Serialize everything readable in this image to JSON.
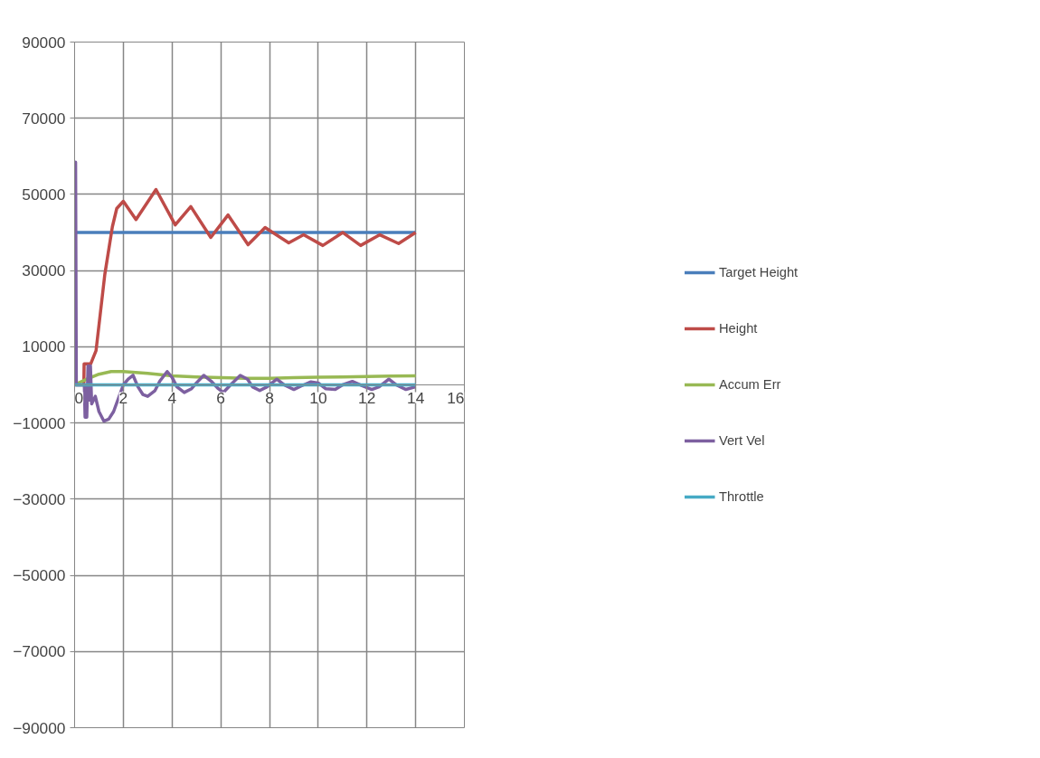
{
  "chart_data": {
    "type": "line",
    "xlim": [
      0,
      16
    ],
    "xticks": [
      0,
      2,
      4,
      6,
      8,
      10,
      12,
      14,
      16
    ],
    "ylim": [
      -90000,
      90000
    ],
    "yticks": [
      -90000,
      -70000,
      -50000,
      -30000,
      -10000,
      10000,
      30000,
      50000,
      70000,
      90000
    ],
    "grid": true,
    "legend": "right",
    "marker": "none",
    "line_style": "solid",
    "series": [
      {
        "name": "Target Height",
        "color": "#4a7ebb",
        "x": [
          0,
          14
        ],
        "values": [
          40000,
          40000
        ]
      },
      {
        "name": "Height",
        "color": "#be4b48",
        "x": [
          0,
          0.38,
          0.39,
          0.66,
          0.88,
          1.24,
          1.55,
          1.73,
          2.0,
          2.52,
          3.34,
          4.13,
          4.77,
          5.59,
          6.3,
          7.12,
          7.82,
          8.79,
          9.4,
          10.19,
          11.01,
          11.74,
          12.53,
          13.3,
          14.0
        ],
        "values": [
          0,
          0,
          5500,
          5500,
          9000,
          29000,
          41500,
          46300,
          48200,
          43400,
          51300,
          42000,
          46800,
          38700,
          44600,
          36800,
          41300,
          37300,
          39400,
          36600,
          40000,
          36600,
          39400,
          37100,
          40000
        ]
      },
      {
        "name": "Accum Err",
        "color": "#98b954",
        "x": [
          0,
          0.5,
          1.0,
          1.5,
          2.0,
          3.0,
          4.0,
          5.0,
          6.0,
          7.0,
          8.0,
          9.0,
          10.0,
          11.0,
          12.0,
          13.0,
          14.0
        ],
        "values": [
          0,
          1500,
          2800,
          3500,
          3500,
          3000,
          2400,
          2100,
          1900,
          1700,
          1700,
          1900,
          2000,
          2100,
          2200,
          2300,
          2400
        ]
      },
      {
        "name": "Vert Vel",
        "color": "#7d60a0",
        "x": [
          0,
          0.04,
          0.07,
          0.4,
          0.43,
          0.5,
          0.55,
          0.6,
          0.65,
          0.7,
          0.85,
          1.0,
          1.2,
          1.4,
          1.6,
          1.8,
          2.0,
          2.2,
          2.4,
          2.6,
          2.8,
          3.0,
          3.3,
          3.5,
          3.8,
          4.0,
          4.2,
          4.5,
          4.8,
          5.0,
          5.3,
          5.6,
          5.9,
          6.1,
          6.4,
          6.8,
          7.1,
          7.3,
          7.6,
          7.9,
          8.3,
          8.6,
          9.0,
          9.3,
          9.7,
          10.0,
          10.3,
          10.7,
          11.0,
          11.4,
          11.8,
          12.2,
          12.5,
          12.9,
          13.2,
          13.6,
          14.0
        ],
        "values": [
          0,
          58500,
          0,
          0,
          -8500,
          -8500,
          5000,
          -4000,
          5000,
          -5000,
          -3000,
          -7000,
          -9500,
          -9000,
          -7000,
          -3500,
          0,
          1500,
          2500,
          -500,
          -2500,
          -3000,
          -1500,
          1000,
          3500,
          2000,
          -500,
          -2000,
          -1000,
          500,
          2500,
          1000,
          -1000,
          -2000,
          0,
          2500,
          1500,
          -500,
          -1500,
          -500,
          1500,
          0,
          -1200,
          -300,
          800,
          500,
          -1000,
          -1200,
          0,
          900,
          -200,
          -1200,
          -500,
          1500,
          0,
          -1200,
          -500
        ]
      },
      {
        "name": "Throttle",
        "color": "#46aac5",
        "x": [
          0,
          14
        ],
        "values": [
          0,
          0
        ]
      }
    ]
  }
}
